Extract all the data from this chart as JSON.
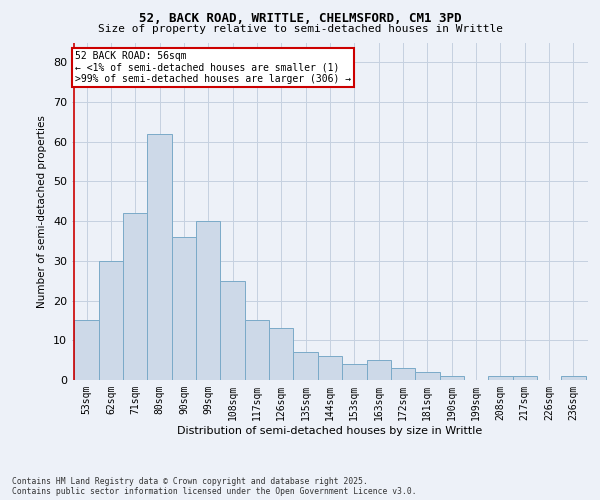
{
  "title_line1": "52, BACK ROAD, WRITTLE, CHELMSFORD, CM1 3PD",
  "title_line2": "Size of property relative to semi-detached houses in Writtle",
  "xlabel": "Distribution of semi-detached houses by size in Writtle",
  "ylabel": "Number of semi-detached properties",
  "categories": [
    "53sqm",
    "62sqm",
    "71sqm",
    "80sqm",
    "90sqm",
    "99sqm",
    "108sqm",
    "117sqm",
    "126sqm",
    "135sqm",
    "144sqm",
    "153sqm",
    "163sqm",
    "172sqm",
    "181sqm",
    "190sqm",
    "199sqm",
    "208sqm",
    "217sqm",
    "226sqm",
    "236sqm"
  ],
  "values": [
    15,
    30,
    42,
    62,
    36,
    40,
    25,
    15,
    13,
    7,
    6,
    4,
    5,
    3,
    2,
    1,
    0,
    1,
    1,
    0,
    1
  ],
  "bar_color": "#cdd9e8",
  "bar_edge_color": "#7aaac8",
  "grid_color": "#c5d0e0",
  "background_color": "#edf1f8",
  "ylim": [
    0,
    85
  ],
  "yticks": [
    0,
    10,
    20,
    30,
    40,
    50,
    60,
    70,
    80
  ],
  "annotation_text": "52 BACK ROAD: 56sqm\n← <1% of semi-detached houses are smaller (1)\n>99% of semi-detached houses are larger (306) →",
  "annotation_box_color": "#ffffff",
  "annotation_box_edge_color": "#cc0000",
  "footer_text": "Contains HM Land Registry data © Crown copyright and database right 2025.\nContains public sector information licensed under the Open Government Licence v3.0."
}
